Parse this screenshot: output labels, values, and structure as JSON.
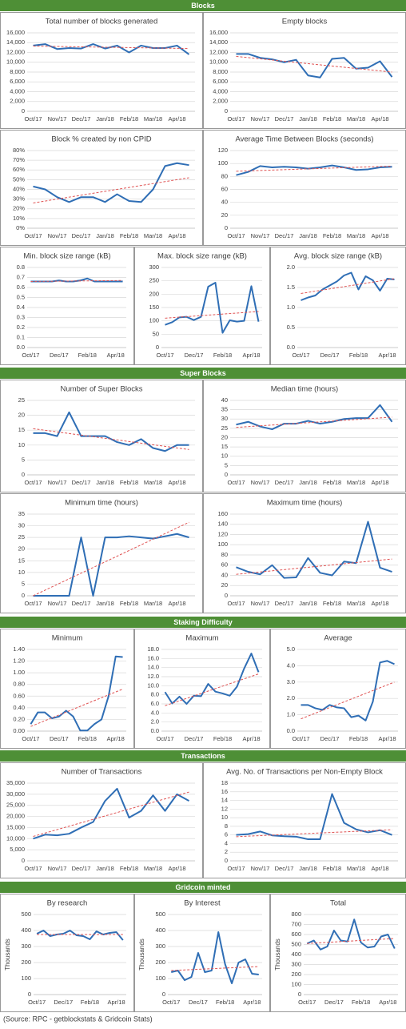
{
  "sections": [
    "Blocks",
    "Super Blocks",
    "Staking Difficulty",
    "Transactions",
    "Gridcoin minted"
  ],
  "source": "(Source: RPC - getblockstats & Gridcoin Stats)",
  "chart_data": [
    {
      "type": "line",
      "title": "Total number of blocks generated",
      "color": "#2f6eb5",
      "trendline_color": "#e05555",
      "grid": true,
      "categories": [
        "Oct/17",
        null,
        "Nov/17",
        null,
        "Dec/17",
        null,
        "Jan/18",
        null,
        "Feb/18",
        null,
        "Mar/18",
        null,
        "Apr/18",
        null
      ],
      "values": [
        13400,
        13700,
        12700,
        12900,
        12800,
        13700,
        12800,
        13400,
        12000,
        13400,
        12900,
        12900,
        13400,
        11600
      ],
      "trendline": [
        13300,
        12800
      ],
      "ylim": [
        0,
        16000
      ],
      "yticks": [
        0,
        {
          "value": 2000,
          "label": "2,000"
        },
        {
          "value": 4000,
          "label": "4,000"
        },
        {
          "value": 6000,
          "label": "6,000"
        },
        {
          "value": 8000,
          "label": "8,000"
        },
        {
          "value": 10000,
          "label": "10,000"
        },
        {
          "value": 12000,
          "label": "12,000"
        },
        {
          "value": 14000,
          "label": "14,000"
        },
        {
          "value": 16000,
          "label": "16,000"
        }
      ]
    },
    {
      "type": "line",
      "title": "Empty blocks",
      "color": "#2f6eb5",
      "trendline_color": "#e05555",
      "grid": true,
      "categories": [
        "Oct/17",
        null,
        "Nov/17",
        null,
        "Dec/17",
        null,
        "Jan/18",
        null,
        "Feb/18",
        null,
        "Mar/18",
        null,
        "Apr/18",
        null
      ],
      "values": [
        11700,
        11700,
        10900,
        10600,
        10000,
        10500,
        7300,
        6900,
        10700,
        10900,
        8700,
        8900,
        10200,
        7000
      ],
      "trendline": [
        11200,
        8000
      ],
      "ylim": [
        0,
        16000
      ],
      "yticks": [
        0,
        {
          "value": 2000,
          "label": "2,000"
        },
        {
          "value": 4000,
          "label": "4,000"
        },
        {
          "value": 6000,
          "label": "6,000"
        },
        {
          "value": 8000,
          "label": "8,000"
        },
        {
          "value": 10000,
          "label": "10,000"
        },
        {
          "value": 12000,
          "label": "12,000"
        },
        {
          "value": 14000,
          "label": "14,000"
        },
        {
          "value": 16000,
          "label": "16,000"
        }
      ]
    },
    {
      "type": "line",
      "title": "Block % created by non CPID",
      "color": "#2f6eb5",
      "trendline_color": "#e05555",
      "grid": true,
      "categories": [
        "Oct/17",
        null,
        "Nov/17",
        null,
        "Dec/17",
        null,
        "Jan/18",
        null,
        "Feb/18",
        null,
        "Mar/18",
        null,
        "Apr/18",
        null
      ],
      "values": [
        43,
        40,
        32,
        27,
        32,
        32,
        27,
        35,
        28,
        27,
        40,
        64,
        67,
        65
      ],
      "trendline": [
        26,
        52
      ],
      "ylim": [
        0,
        80
      ],
      "yticks": [
        {
          "value": 0,
          "label": "0%"
        },
        {
          "value": 10,
          "label": "10%"
        },
        {
          "value": 20,
          "label": "20%"
        },
        {
          "value": 30,
          "label": "30%"
        },
        {
          "value": 40,
          "label": "40%"
        },
        {
          "value": 50,
          "label": "50%"
        },
        {
          "value": 60,
          "label": "60%"
        },
        {
          "value": 70,
          "label": "70%"
        },
        {
          "value": 80,
          "label": "80%"
        }
      ]
    },
    {
      "type": "line",
      "title": "Average Time Between Blocks (seconds)",
      "color": "#2f6eb5",
      "trendline_color": "#e05555",
      "grid": true,
      "categories": [
        "Oct/17",
        null,
        "Nov/17",
        null,
        "Dec/17",
        null,
        "Jan/18",
        null,
        "Feb/18",
        null,
        "Mar/18",
        null,
        "Apr/18",
        null
      ],
      "values": [
        82,
        87,
        96,
        94,
        95,
        94,
        92,
        94,
        97,
        94,
        90,
        91,
        94,
        95
      ],
      "trendline": [
        88,
        96
      ],
      "ylim": [
        0,
        120
      ],
      "yticks": [
        0,
        20,
        40,
        60,
        80,
        100,
        120
      ]
    },
    {
      "type": "line",
      "title": "Min. block size range (kB)",
      "color": "#2f6eb5",
      "trendline_color": "#e05555",
      "grid": true,
      "categories": [
        "Oct/17",
        null,
        null,
        null,
        "Dec/17",
        null,
        null,
        null,
        "Feb/18",
        null,
        null,
        null,
        "Apr/18",
        null
      ],
      "values": [
        0.66,
        0.66,
        0.66,
        0.66,
        0.67,
        0.66,
        0.66,
        0.67,
        0.69,
        0.66,
        0.66,
        0.66,
        0.66,
        0.66
      ],
      "trendline": [
        0.66,
        0.67
      ],
      "ylim": [
        0,
        0.8
      ],
      "yticks": [
        {
          "value": 0,
          "label": "0.0"
        },
        0.1,
        0.2,
        0.3,
        0.4,
        0.5,
        0.6,
        0.7,
        0.8
      ]
    },
    {
      "type": "line",
      "title": "Max. block size range (kB)",
      "color": "#2f6eb5",
      "trendline_color": "#e05555",
      "grid": true,
      "categories": [
        "Oct/17",
        null,
        null,
        null,
        "Dec/17",
        null,
        null,
        null,
        "Feb/18",
        null,
        null,
        null,
        "Apr/18",
        null
      ],
      "values": [
        85,
        95,
        113,
        115,
        103,
        115,
        228,
        243,
        55,
        102,
        97,
        100,
        230,
        97
      ],
      "trendline": [
        110,
        135
      ],
      "ylim": [
        0,
        300
      ],
      "yticks": [
        0,
        50,
        100,
        150,
        200,
        250,
        300
      ]
    },
    {
      "type": "line",
      "title": "Avg. block size range (kB)",
      "color": "#2f6eb5",
      "trendline_color": "#e05555",
      "grid": true,
      "categories": [
        "Oct/17",
        null,
        null,
        null,
        "Dec/17",
        null,
        null,
        null,
        "Feb/18",
        null,
        null,
        null,
        "Apr/18",
        null
      ],
      "values": [
        1.18,
        1.25,
        1.3,
        1.45,
        1.55,
        1.65,
        1.8,
        1.87,
        1.45,
        1.78,
        1.68,
        1.42,
        1.72,
        1.7
      ],
      "trendline": [
        1.35,
        1.72
      ],
      "ylim": [
        0,
        2
      ],
      "yticks": [
        {
          "value": 0,
          "label": "0.0"
        },
        0.5,
        {
          "value": 1,
          "label": "1.0"
        },
        1.5,
        {
          "value": 2,
          "label": "2.0"
        }
      ]
    },
    {
      "type": "line",
      "title": "Number of Super Blocks",
      "color": "#2f6eb5",
      "trendline_color": "#e05555",
      "grid": true,
      "categories": [
        "Oct/17",
        null,
        "Nov/17",
        null,
        "Dec/17",
        null,
        "Jan/18",
        null,
        "Feb/18",
        null,
        "Mar/18",
        null,
        "Apr/18",
        null
      ],
      "values": [
        14,
        14,
        13,
        21,
        13,
        13,
        13,
        11,
        10,
        12,
        9,
        8,
        10,
        10
      ],
      "trendline": [
        15.5,
        8.5
      ],
      "ylim": [
        0,
        25
      ],
      "yticks": [
        0,
        5,
        10,
        15,
        20,
        25
      ]
    },
    {
      "type": "line",
      "title": "Median time (hours)",
      "color": "#2f6eb5",
      "trendline_color": "#e05555",
      "grid": true,
      "categories": [
        "Oct/17",
        null,
        "Nov/17",
        null,
        "Dec/17",
        null,
        "Jan/18",
        null,
        "Feb/18",
        null,
        "Mar/18",
        null,
        "Apr/18",
        null
      ],
      "values": [
        27,
        28.5,
        26,
        24.5,
        27.5,
        27.5,
        29,
        27.5,
        28.5,
        30,
        30.5,
        30.5,
        37.5,
        28.5
      ],
      "trendline": [
        25.5,
        31
      ],
      "ylim": [
        0,
        40
      ],
      "yticks": [
        0,
        5,
        10,
        15,
        20,
        25,
        30,
        35,
        40
      ]
    },
    {
      "type": "line",
      "title": "Minimum time (hours)",
      "color": "#2f6eb5",
      "trendline_color": "#e05555",
      "grid": true,
      "categories": [
        "Oct/17",
        null,
        "Nov/17",
        null,
        "Dec/17",
        null,
        "Jan/18",
        null,
        "Feb/18",
        null,
        "Mar/18",
        null,
        "Apr/18",
        null
      ],
      "values": [
        0,
        0,
        0,
        0,
        25,
        0,
        25,
        25,
        25.5,
        25,
        24.5,
        25.5,
        26.5,
        25
      ],
      "trendline": [
        0,
        31.5
      ],
      "ylim": [
        0,
        35
      ],
      "yticks": [
        0,
        5,
        10,
        15,
        20,
        25,
        30,
        35
      ]
    },
    {
      "type": "line",
      "title": "Maximum time (hours)",
      "color": "#2f6eb5",
      "trendline_color": "#e05555",
      "grid": true,
      "categories": [
        "Oct/17",
        null,
        "Nov/17",
        null,
        "Dec/17",
        null,
        "Jan/18",
        null,
        "Feb/18",
        null,
        "Mar/18",
        null,
        "Apr/18",
        null
      ],
      "values": [
        56,
        47,
        42,
        60,
        35,
        36,
        74,
        45,
        40,
        67,
        64,
        145,
        55,
        47
      ],
      "trendline": [
        42,
        72
      ],
      "ylim": [
        0,
        160
      ],
      "yticks": [
        0,
        20,
        40,
        60,
        80,
        100,
        120,
        140,
        160
      ]
    },
    {
      "type": "line",
      "title": "Minimum",
      "color": "#2f6eb5",
      "trendline_color": "#e05555",
      "grid": true,
      "categories": [
        "Oct/17",
        null,
        null,
        null,
        "Dec/17",
        null,
        null,
        null,
        "Feb/18",
        null,
        null,
        null,
        "Apr/18",
        null
      ],
      "values": [
        0.12,
        0.32,
        0.32,
        0.22,
        0.25,
        0.35,
        0.25,
        0.01,
        0.01,
        0.12,
        0.2,
        0.6,
        1.28,
        1.27
      ],
      "trendline": [
        0.08,
        0.72
      ],
      "ylim": [
        0,
        1.4
      ],
      "yticks": [
        {
          "value": 0,
          "label": "0.00"
        },
        {
          "value": 0.2,
          "label": "0.20"
        },
        {
          "value": 0.4,
          "label": "0.40"
        },
        {
          "value": 0.6,
          "label": "0.60"
        },
        {
          "value": 0.8,
          "label": "0.80"
        },
        {
          "value": 1,
          "label": "1.00"
        },
        {
          "value": 1.2,
          "label": "1.20"
        },
        {
          "value": 1.4,
          "label": "1.40"
        }
      ]
    },
    {
      "type": "line",
      "title": "Maximum",
      "color": "#2f6eb5",
      "trendline_color": "#e05555",
      "grid": true,
      "categories": [
        "Oct/17",
        null,
        null,
        null,
        "Dec/17",
        null,
        null,
        null,
        "Feb/18",
        null,
        null,
        null,
        "Apr/18",
        null
      ],
      "values": [
        8.6,
        6.1,
        7.6,
        6,
        7.8,
        7.7,
        10.4,
        8.7,
        8.3,
        7.8,
        9.8,
        13.8,
        17.1,
        13
      ],
      "trendline": [
        5.6,
        12.6
      ],
      "ylim": [
        0,
        18
      ],
      "yticks": [
        {
          "value": 0,
          "label": "0.0"
        },
        {
          "value": 2,
          "label": "2.0"
        },
        {
          "value": 4,
          "label": "4.0"
        },
        {
          "value": 6,
          "label": "6.0"
        },
        {
          "value": 8,
          "label": "8.0"
        },
        {
          "value": 10,
          "label": "10.0"
        },
        {
          "value": 12,
          "label": "12.0"
        },
        {
          "value": 14,
          "label": "14.0"
        },
        {
          "value": 16,
          "label": "16.0"
        },
        {
          "value": 18,
          "label": "18.0"
        }
      ]
    },
    {
      "type": "line",
      "title": "Average",
      "color": "#2f6eb5",
      "trendline_color": "#e05555",
      "grid": true,
      "categories": [
        "Oct/17",
        null,
        null,
        null,
        "Dec/17",
        null,
        null,
        null,
        "Feb/18",
        null,
        null,
        null,
        "Apr/18",
        null
      ],
      "values": [
        1.6,
        1.6,
        1.4,
        1.3,
        1.6,
        1.45,
        1.4,
        0.85,
        0.95,
        0.65,
        1.8,
        4.2,
        4.3,
        4.1
      ],
      "trendline": [
        0.75,
        3
      ],
      "ylim": [
        0,
        5
      ],
      "yticks": [
        {
          "value": 0,
          "label": "0.0"
        },
        {
          "value": 1,
          "label": "1.0"
        },
        {
          "value": 2,
          "label": "2.0"
        },
        {
          "value": 3,
          "label": "3.0"
        },
        {
          "value": 4,
          "label": "4.0"
        },
        {
          "value": 5,
          "label": "5.0"
        }
      ]
    },
    {
      "type": "line",
      "title": "Number of Transactions",
      "color": "#2f6eb5",
      "trendline_color": "#e05555",
      "grid": true,
      "categories": [
        "Oct/17",
        null,
        "Nov/17",
        null,
        "Dec/17",
        null,
        "Jan/18",
        null,
        "Feb/18",
        null,
        "Mar/18",
        null,
        "Apr/18",
        null
      ],
      "values": [
        10000,
        11800,
        11500,
        12200,
        15000,
        17500,
        27000,
        32500,
        19500,
        22500,
        29500,
        22500,
        30000,
        27000
      ],
      "trendline": [
        11000,
        31000
      ],
      "ylim": [
        0,
        35000
      ],
      "yticks": [
        0,
        {
          "value": 5000,
          "label": "5,000"
        },
        {
          "value": 10000,
          "label": "10,000"
        },
        {
          "value": 15000,
          "label": "15,000"
        },
        {
          "value": 20000,
          "label": "20,000"
        },
        {
          "value": 25000,
          "label": "25,000"
        },
        {
          "value": 30000,
          "label": "30,000"
        },
        {
          "value": 35000,
          "label": "35,000"
        }
      ]
    },
    {
      "type": "line",
      "title": "Avg. No. of Transactions per Non-Empty Block",
      "color": "#2f6eb5",
      "trendline_color": "#e05555",
      "grid": true,
      "categories": [
        "Oct/17",
        null,
        "Nov/17",
        null,
        "Dec/17",
        null,
        "Jan/18",
        null,
        "Feb/18",
        null,
        "Mar/18",
        null,
        "Apr/18",
        null
      ],
      "values": [
        6,
        6.2,
        6.8,
        5.9,
        5.7,
        5.6,
        5,
        5,
        15.5,
        8.8,
        7.3,
        6.6,
        7.1,
        6
      ],
      "trendline": [
        5.6,
        7.2
      ],
      "ylim": [
        0,
        18
      ],
      "yticks": [
        0,
        2,
        4,
        6,
        8,
        10,
        12,
        14,
        16,
        18
      ]
    },
    {
      "type": "line",
      "title": "By research",
      "y_label": "Thousands",
      "color": "#2f6eb5",
      "trendline_color": "#e05555",
      "grid": true,
      "categories": [
        "Oct/17",
        null,
        null,
        null,
        "Dec/17",
        null,
        null,
        null,
        "Feb/18",
        null,
        null,
        null,
        "Apr/18",
        null
      ],
      "values": [
        380,
        400,
        365,
        375,
        380,
        400,
        370,
        365,
        345,
        395,
        375,
        385,
        390,
        340
      ],
      "trendline": [
        375,
        375
      ],
      "ylim": [
        0,
        500
      ],
      "yticks": [
        0,
        100,
        200,
        300,
        400,
        500
      ]
    },
    {
      "type": "line",
      "title": "By Interest",
      "y_label": "Thousands",
      "color": "#2f6eb5",
      "trendline_color": "#e05555",
      "grid": true,
      "categories": [
        "Oct/17",
        null,
        null,
        null,
        "Dec/17",
        null,
        null,
        null,
        "Feb/18",
        null,
        null,
        null,
        "Apr/18",
        null
      ],
      "values": [
        140,
        150,
        90,
        110,
        260,
        140,
        150,
        390,
        190,
        70,
        200,
        220,
        130,
        125
      ],
      "trendline": [
        150,
        175
      ],
      "ylim": [
        0,
        500
      ],
      "yticks": [
        0,
        100,
        200,
        300,
        400,
        500
      ]
    },
    {
      "type": "line",
      "title": "Total",
      "y_label": "Thousands",
      "color": "#2f6eb5",
      "trendline_color": "#e05555",
      "grid": true,
      "categories": [
        "Oct/17",
        null,
        null,
        null,
        "Dec/17",
        null,
        null,
        null,
        "Feb/18",
        null,
        null,
        null,
        "Apr/18",
        null
      ],
      "values": [
        510,
        540,
        450,
        480,
        640,
        540,
        530,
        750,
        520,
        470,
        480,
        580,
        600,
        460
      ],
      "trendline": [
        510,
        560
      ],
      "ylim": [
        0,
        800
      ],
      "yticks": [
        0,
        100,
        200,
        300,
        400,
        500,
        600,
        700,
        800
      ]
    }
  ]
}
